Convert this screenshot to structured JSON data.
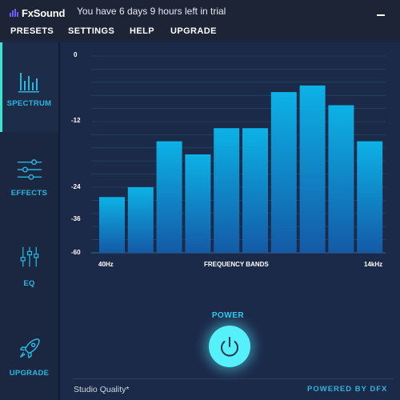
{
  "app": {
    "name": "FxSound",
    "trial_message": "You have 6 days 9 hours left in trial"
  },
  "menu": [
    "PRESETS",
    "SETTINGS",
    "HELP",
    "UPGRADE"
  ],
  "sidebar": {
    "items": [
      {
        "label": "SPECTRUM",
        "icon": "spectrum-icon",
        "active": true
      },
      {
        "label": "EFFECTS",
        "icon": "sliders-icon",
        "active": false
      },
      {
        "label": "EQ",
        "icon": "eq-icon",
        "active": false
      },
      {
        "label": "UPGRADE",
        "icon": "rocket-icon",
        "active": false
      }
    ]
  },
  "spectrum": {
    "y_ticks": [
      "0",
      "-12",
      "-24",
      "-36",
      "-60"
    ],
    "x_start_label": "40Hz",
    "x_center_label": "FREQUENCY BANDS",
    "x_end_label": "14kHz"
  },
  "chart_data": {
    "type": "bar",
    "xlabel": "FREQUENCY BANDS",
    "x_range_labels": [
      "40Hz",
      "14kHz"
    ],
    "y_tick_labels": [
      "0",
      "-12",
      "-24",
      "-36",
      "-60"
    ],
    "ylim": [
      -60,
      0
    ],
    "bar_count": 10,
    "values": [
      -43,
      -40,
      -26,
      -30,
      -22,
      -22,
      -11,
      -9,
      -15,
      -26
    ],
    "grid": true,
    "colors": {
      "bar_top": "#0cb2e6",
      "bar_bottom": "#145aa6",
      "grid": "#2a6688"
    }
  },
  "power": {
    "label": "POWER",
    "state": "on"
  },
  "footer": {
    "quality": "Studio Quality*",
    "powered_by": "POWERED BY DFX"
  }
}
